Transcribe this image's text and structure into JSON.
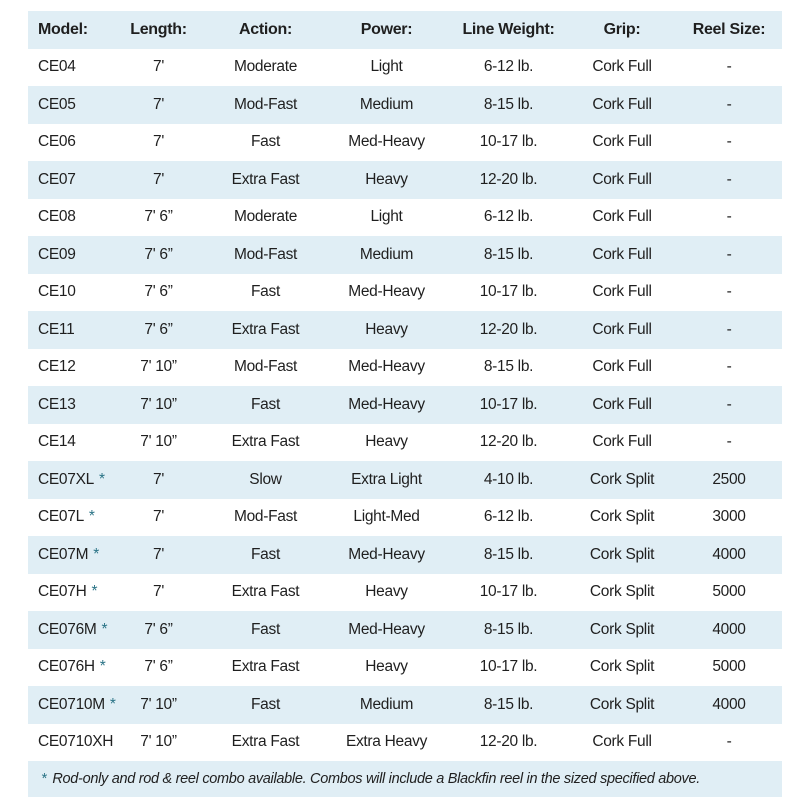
{
  "colors": {
    "stripe": "#e0eef5",
    "text": "#1f1f1f",
    "accent": "#2a7386"
  },
  "table": {
    "headers": [
      "Model:",
      "Length:",
      "Action:",
      "Power:",
      "Line Weight:",
      "Grip:",
      "Reel Size:"
    ],
    "rows": [
      {
        "model": "CE04",
        "asterisk": false,
        "length": "7'",
        "action": "Moderate",
        "power": "Light",
        "line_weight": "6-12 lb.",
        "grip": "Cork Full",
        "reel_size": "-"
      },
      {
        "model": "CE05",
        "asterisk": false,
        "length": "7'",
        "action": "Mod-Fast",
        "power": "Medium",
        "line_weight": "8-15 lb.",
        "grip": "Cork Full",
        "reel_size": "-"
      },
      {
        "model": "CE06",
        "asterisk": false,
        "length": "7'",
        "action": "Fast",
        "power": "Med-Heavy",
        "line_weight": "10-17 lb.",
        "grip": "Cork Full",
        "reel_size": "-"
      },
      {
        "model": "CE07",
        "asterisk": false,
        "length": "7'",
        "action": "Extra Fast",
        "power": "Heavy",
        "line_weight": "12-20 lb.",
        "grip": "Cork Full",
        "reel_size": "-"
      },
      {
        "model": "CE08",
        "asterisk": false,
        "length": "7' 6”",
        "action": "Moderate",
        "power": "Light",
        "line_weight": "6-12 lb.",
        "grip": "Cork Full",
        "reel_size": "-"
      },
      {
        "model": "CE09",
        "asterisk": false,
        "length": "7' 6”",
        "action": "Mod-Fast",
        "power": "Medium",
        "line_weight": "8-15 lb.",
        "grip": "Cork Full",
        "reel_size": "-"
      },
      {
        "model": "CE10",
        "asterisk": false,
        "length": "7' 6”",
        "action": "Fast",
        "power": "Med-Heavy",
        "line_weight": "10-17 lb.",
        "grip": "Cork Full",
        "reel_size": "-"
      },
      {
        "model": "CE11",
        "asterisk": false,
        "length": "7' 6”",
        "action": "Extra Fast",
        "power": "Heavy",
        "line_weight": "12-20 lb.",
        "grip": "Cork Full",
        "reel_size": "-"
      },
      {
        "model": "CE12",
        "asterisk": false,
        "length": "7' 10”",
        "action": "Mod-Fast",
        "power": "Med-Heavy",
        "line_weight": "8-15 lb.",
        "grip": "Cork Full",
        "reel_size": "-"
      },
      {
        "model": "CE13",
        "asterisk": false,
        "length": "7' 10”",
        "action": "Fast",
        "power": "Med-Heavy",
        "line_weight": "10-17 lb.",
        "grip": "Cork Full",
        "reel_size": "-"
      },
      {
        "model": "CE14",
        "asterisk": false,
        "length": "7' 10”",
        "action": "Extra Fast",
        "power": "Heavy",
        "line_weight": "12-20 lb.",
        "grip": "Cork Full",
        "reel_size": "-"
      },
      {
        "model": "CE07XL",
        "asterisk": true,
        "length": "7'",
        "action": "Slow",
        "power": "Extra Light",
        "line_weight": "4-10 lb.",
        "grip": "Cork Split",
        "reel_size": "2500"
      },
      {
        "model": "CE07L",
        "asterisk": true,
        "length": "7'",
        "action": "Mod-Fast",
        "power": "Light-Med",
        "line_weight": "6-12 lb.",
        "grip": "Cork Split",
        "reel_size": "3000"
      },
      {
        "model": "CE07M",
        "asterisk": true,
        "length": "7'",
        "action": "Fast",
        "power": "Med-Heavy",
        "line_weight": "8-15 lb.",
        "grip": "Cork Split",
        "reel_size": "4000"
      },
      {
        "model": "CE07H",
        "asterisk": true,
        "length": "7'",
        "action": "Extra Fast",
        "power": "Heavy",
        "line_weight": "10-17 lb.",
        "grip": "Cork Split",
        "reel_size": "5000"
      },
      {
        "model": "CE076M",
        "asterisk": true,
        "length": "7' 6”",
        "action": "Fast",
        "power": "Med-Heavy",
        "line_weight": "8-15 lb.",
        "grip": "Cork Split",
        "reel_size": "4000"
      },
      {
        "model": "CE076H",
        "asterisk": true,
        "length": "7' 6”",
        "action": "Extra Fast",
        "power": "Heavy",
        "line_weight": "10-17 lb.",
        "grip": "Cork Split",
        "reel_size": "5000"
      },
      {
        "model": "CE0710M",
        "asterisk": true,
        "length": "7' 10”",
        "action": "Fast",
        "power": "Medium",
        "line_weight": "8-15 lb.",
        "grip": "Cork Split",
        "reel_size": "4000"
      },
      {
        "model": "CE0710XH",
        "asterisk": false,
        "length": "7' 10”",
        "action": "Extra Fast",
        "power": "Extra Heavy",
        "line_weight": "12-20 lb.",
        "grip": "Cork Full",
        "reel_size": "-"
      }
    ],
    "footnote": {
      "marker": "*",
      "text": "Rod-only and rod & reel combo available. Combos will include a Blackfin reel in the sized specified above."
    }
  }
}
